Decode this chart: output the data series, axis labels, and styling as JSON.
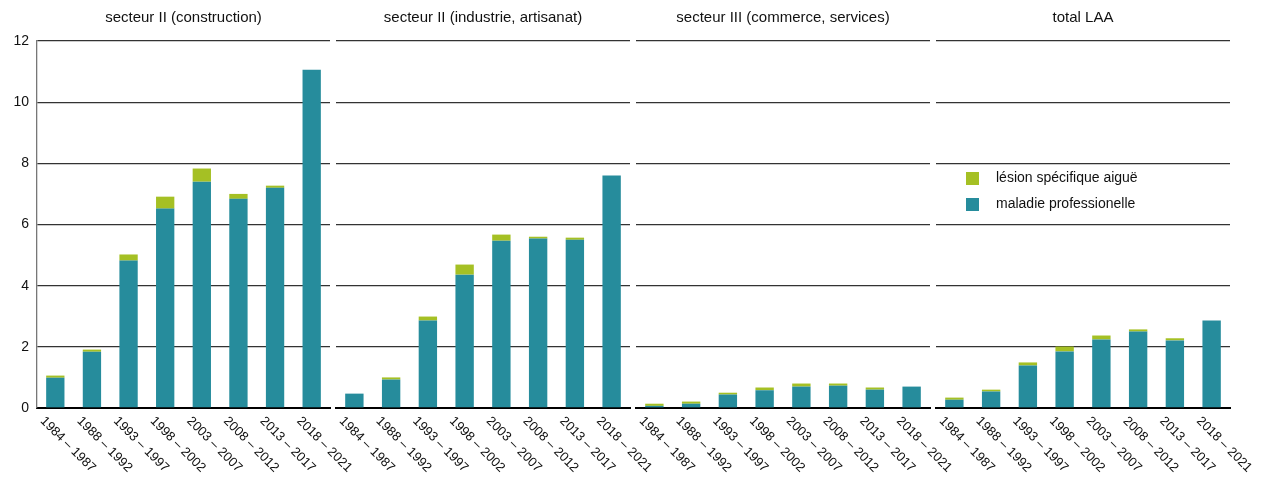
{
  "chart_data": [
    {
      "type": "bar",
      "stacked": true,
      "title": "secteur II (construction)",
      "categories": [
        "1984 – 1987",
        "1988 – 1992",
        "1993 – 1997",
        "1998 – 2002",
        "2003 – 2007",
        "2008 – 2012",
        "2013 – 2017",
        "2018 – 2021"
      ],
      "series": [
        {
          "color": "#268c9c",
          "values": [
            0.99,
            1.84,
            4.82,
            6.52,
            7.4,
            6.84,
            7.2,
            11.06
          ]
        },
        {
          "color": "#a5c024",
          "values": [
            0.07,
            0.07,
            0.2,
            0.39,
            0.43,
            0.16,
            0.07,
            0
          ]
        }
      ],
      "ylim": [
        0,
        12
      ],
      "yticks": [
        0,
        2,
        4,
        6,
        8,
        10,
        12
      ],
      "grid": "y"
    },
    {
      "type": "bar",
      "stacked": true,
      "title": "secteur II (industrie, artisanat)",
      "categories": [
        "1984 – 1987",
        "1988 – 1992",
        "1993 – 1997",
        "1998 – 2002",
        "2003 – 2007",
        "2008 – 2012",
        "2013 – 2017",
        "2018 – 2021"
      ],
      "series": [
        {
          "color": "#268c9c",
          "values": [
            0.47,
            0.93,
            2.86,
            4.36,
            5.47,
            5.54,
            5.5,
            7.6
          ]
        },
        {
          "color": "#a5c024",
          "values": [
            0,
            0.07,
            0.13,
            0.33,
            0.2,
            0.06,
            0.07,
            0
          ]
        }
      ],
      "ylim": [
        0,
        12
      ],
      "yticks": [
        0,
        2,
        4,
        6,
        8,
        10,
        12
      ],
      "grid": "y",
      "tick_labels": "x"
    },
    {
      "type": "bar",
      "stacked": true,
      "title": "secteur III (commerce, services)",
      "categories": [
        "1984 – 1987",
        "1988 – 1992",
        "1993 – 1997",
        "1998 – 2002",
        "2003 – 2007",
        "2008 – 2012",
        "2013 – 2017",
        "2018 – 2021"
      ],
      "series": [
        {
          "color": "#268c9c",
          "values": [
            0.07,
            0.14,
            0.44,
            0.58,
            0.7,
            0.73,
            0.6,
            0.7
          ]
        },
        {
          "color": "#a5c024",
          "values": [
            0.07,
            0.07,
            0.06,
            0.09,
            0.1,
            0.07,
            0.07,
            0
          ]
        }
      ],
      "ylim": [
        0,
        12
      ],
      "yticks": [
        0,
        2,
        4,
        6,
        8,
        10,
        12
      ],
      "grid": "y",
      "tick_labels": "x"
    },
    {
      "type": "bar",
      "stacked": true,
      "title": "total LAA",
      "categories": [
        "1984 – 1987",
        "1988 – 1992",
        "1993 – 1997",
        "1998 – 2002",
        "2003 – 2007",
        "2008 – 2012",
        "2013 – 2017",
        "2018 – 2021"
      ],
      "series": [
        {
          "name": "maladie professionelle",
          "color": "#268c9c",
          "values": [
            0.27,
            0.54,
            1.39,
            1.85,
            2.24,
            2.5,
            2.21,
            2.86
          ]
        },
        {
          "name": "lésion spécifique aiguë",
          "color": "#a5c024",
          "values": [
            0.07,
            0.06,
            0.1,
            0.16,
            0.13,
            0.07,
            0.07,
            0
          ]
        }
      ],
      "ylim": [
        0,
        12
      ],
      "yticks": [
        0,
        2,
        4,
        6,
        8,
        10,
        12
      ],
      "grid": "y",
      "tick_labels": "x",
      "legend": "top left"
    }
  ]
}
